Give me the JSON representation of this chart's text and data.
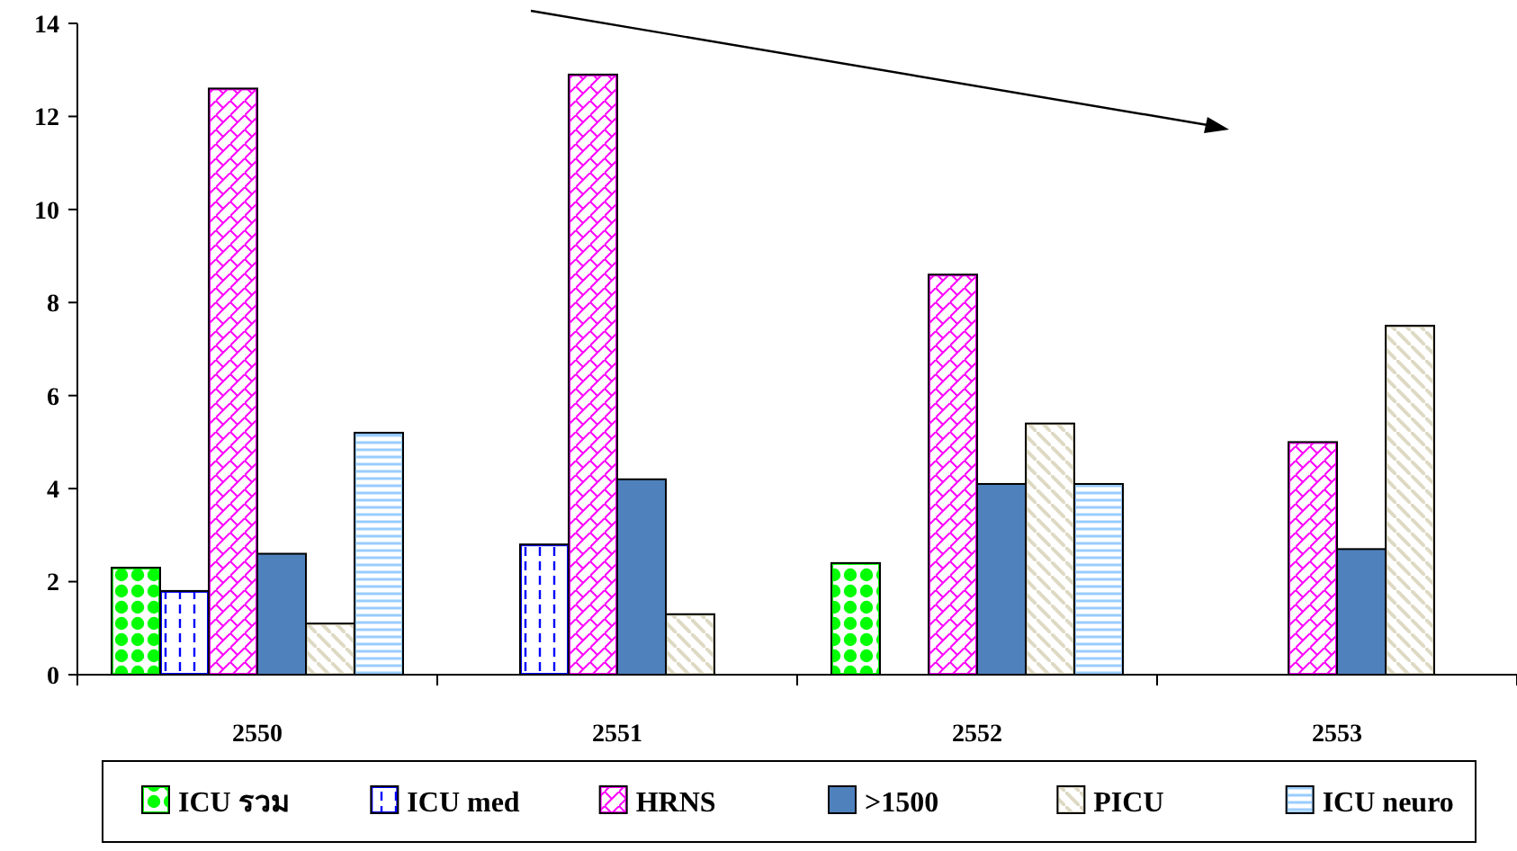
{
  "chart_data": {
    "type": "bar",
    "categories": [
      "2550",
      "2551",
      "2552",
      "2553"
    ],
    "series": [
      {
        "name": "ICU รวม",
        "color": "#00ff00",
        "values": [
          2.3,
          null,
          2.4,
          null
        ]
      },
      {
        "name": "ICU med",
        "color": "#0000ff",
        "values": [
          1.8,
          2.8,
          null,
          null
        ]
      },
      {
        "name": "HRNS",
        "color": "#ff00ff",
        "values": [
          12.6,
          12.9,
          8.6,
          5.0
        ]
      },
      {
        "name": ">1500",
        "color": "#4f81bd",
        "values": [
          2.6,
          4.2,
          4.1,
          2.7
        ]
      },
      {
        "name": "PICU",
        "color": "#ddd9c3",
        "values": [
          1.1,
          1.3,
          5.4,
          7.5
        ]
      },
      {
        "name": "ICU neuro",
        "color": "#99ccff",
        "values": [
          5.2,
          null,
          4.1,
          null
        ]
      }
    ],
    "ylim": [
      0,
      14
    ],
    "yticks": [
      0,
      2,
      4,
      6,
      8,
      10,
      12,
      14
    ],
    "grid": false,
    "legend": "bottom"
  }
}
